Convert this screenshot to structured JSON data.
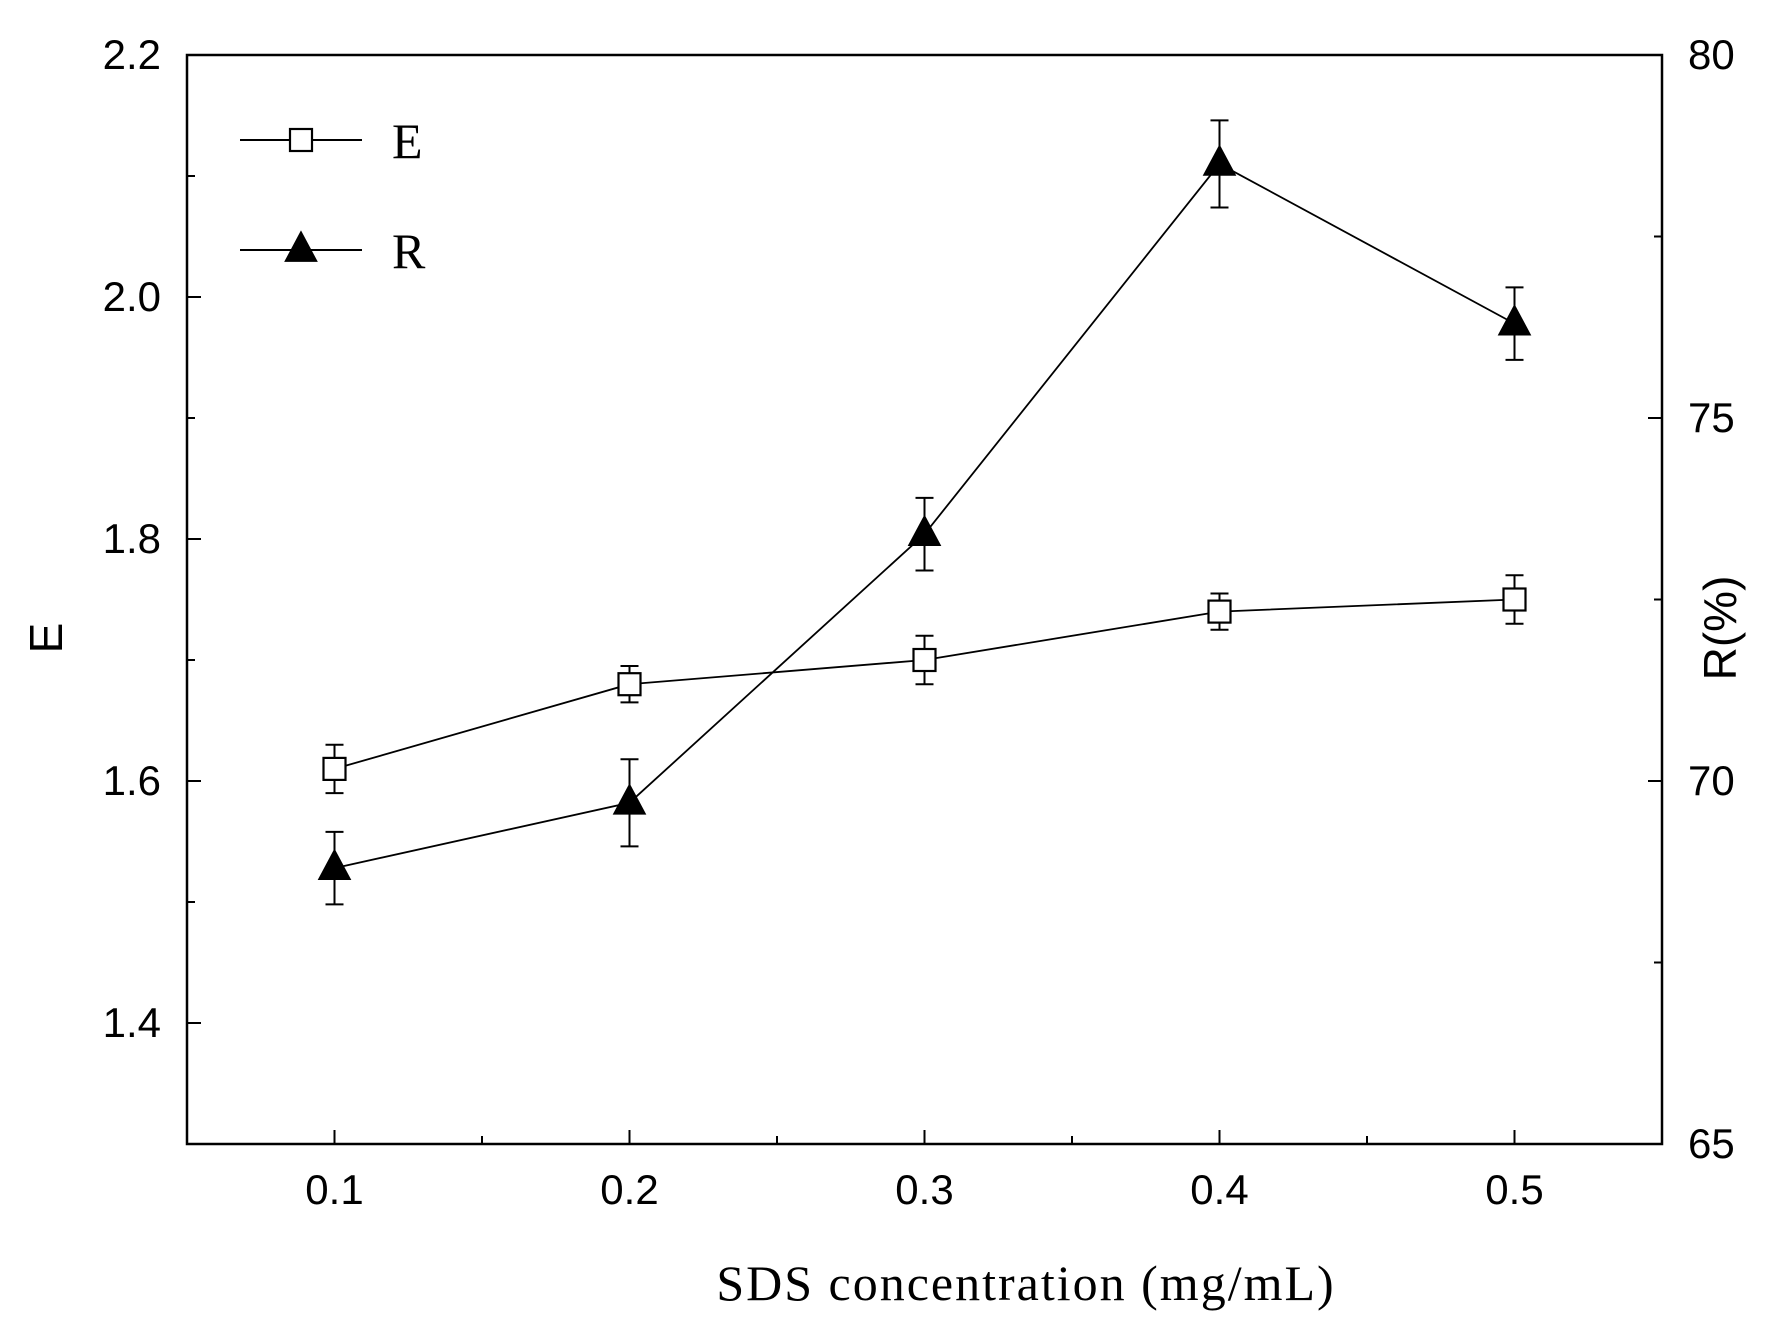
{
  "chart_data": {
    "type": "line",
    "title": "",
    "xlabel": "SDS concentration (mg/mL)",
    "ylabel": "E",
    "y2label": "R(%)",
    "x": [
      0.1,
      0.2,
      0.3,
      0.4,
      0.5
    ],
    "xlim": [
      0.05,
      0.55
    ],
    "ylim": [
      1.3,
      2.2
    ],
    "y2lim": [
      65,
      80
    ],
    "x_ticks": [
      "0.1",
      "0.2",
      "0.3",
      "0.4",
      "0.5"
    ],
    "y_ticks": [
      "1.4",
      "1.6",
      "1.8",
      "2.0",
      "2.2"
    ],
    "y2_ticks": [
      "65",
      "70",
      "75",
      "80"
    ],
    "legend_position": "top-left",
    "series": [
      {
        "name": "E",
        "axis": "left",
        "marker": "open-square",
        "values": [
          1.61,
          1.68,
          1.7,
          1.74,
          1.75
        ],
        "errors": [
          0.02,
          0.015,
          0.02,
          0.015,
          0.02
        ]
      },
      {
        "name": "R",
        "axis": "right",
        "marker": "filled-triangle",
        "values": [
          68.8,
          69.7,
          73.4,
          78.5,
          76.3
        ],
        "errors": [
          0.5,
          0.6,
          0.5,
          0.6,
          0.5
        ]
      }
    ]
  }
}
